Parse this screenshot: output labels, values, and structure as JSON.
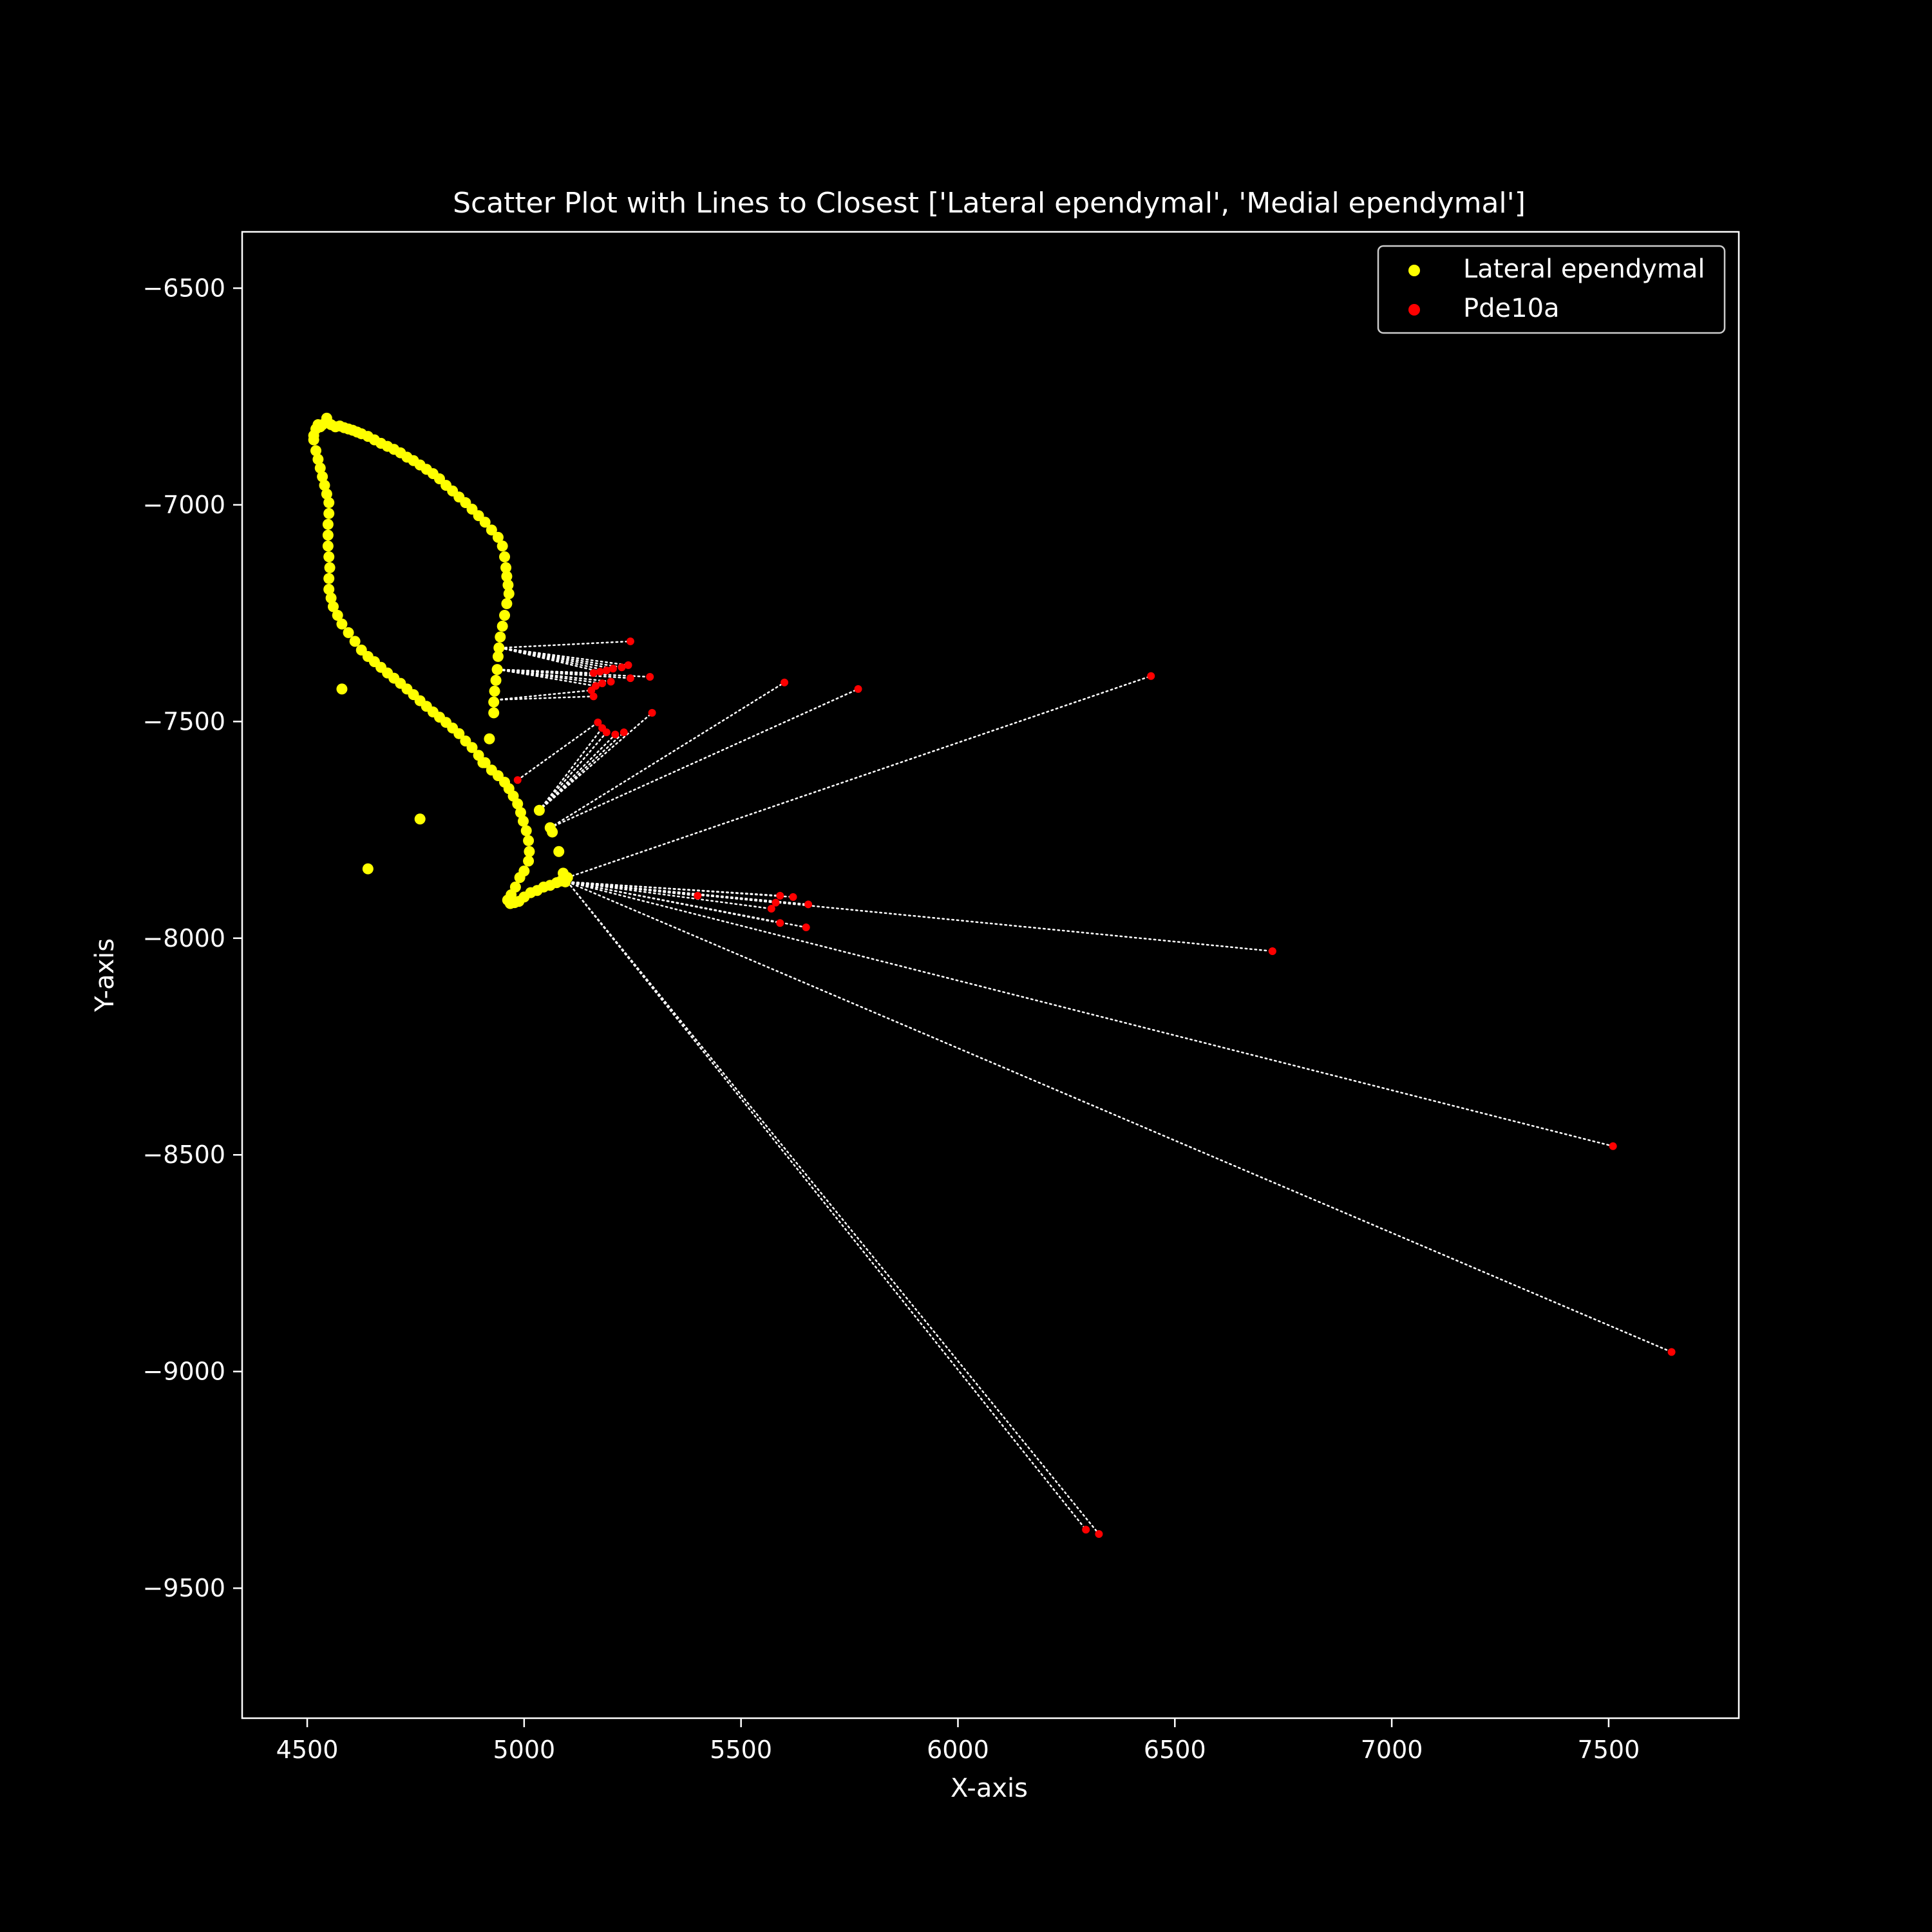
{
  "chart_data": {
    "type": "scatter",
    "title": "Scatter Plot with Lines to Closest ['Lateral ependymal', 'Medial ependymal']",
    "xlabel": "X-axis",
    "ylabel": "Y-axis",
    "xlim": [
      4350,
      7800
    ],
    "ylim": [
      -9800,
      -6370
    ],
    "xticks": [
      4500,
      5000,
      5500,
      6000,
      6500,
      7000,
      7500
    ],
    "yticks": [
      -6500,
      -7000,
      -7500,
      -8000,
      -8500,
      -9000,
      -9500
    ],
    "xtick_labels": [
      "4500",
      "5000",
      "5500",
      "6000",
      "6500",
      "7000",
      "7500"
    ],
    "ytick_labels": [
      "−6500",
      "−7000",
      "−7500",
      "−8000",
      "−8500",
      "−9000",
      "−9500"
    ],
    "grid": false,
    "legend_position": "top-right",
    "colors": {
      "background": "#000000",
      "axes": "#ffffff",
      "lateral": "#ffff00",
      "pde10a": "#ff0000",
      "lines": "#ffffff"
    },
    "series": [
      {
        "name": "Lateral ependymal",
        "color": "#ffff00",
        "points": [
          [
            4515,
            -6840
          ],
          [
            4520,
            -6825
          ],
          [
            4525,
            -6815
          ],
          [
            4530,
            -6820
          ],
          [
            4535,
            -6815
          ],
          [
            4545,
            -6800
          ],
          [
            4555,
            -6815
          ],
          [
            4565,
            -6820
          ],
          [
            4575,
            -6818
          ],
          [
            4585,
            -6822
          ],
          [
            4595,
            -6825
          ],
          [
            4605,
            -6828
          ],
          [
            4615,
            -6832
          ],
          [
            4625,
            -6836
          ],
          [
            4640,
            -6842
          ],
          [
            4655,
            -6850
          ],
          [
            4670,
            -6858
          ],
          [
            4685,
            -6865
          ],
          [
            4700,
            -6872
          ],
          [
            4715,
            -6880
          ],
          [
            4730,
            -6890
          ],
          [
            4745,
            -6898
          ],
          [
            4760,
            -6908
          ],
          [
            4775,
            -6918
          ],
          [
            4790,
            -6928
          ],
          [
            4805,
            -6940
          ],
          [
            4820,
            -6955
          ],
          [
            4835,
            -6968
          ],
          [
            4850,
            -6982
          ],
          [
            4865,
            -6995
          ],
          [
            4880,
            -7010
          ],
          [
            4895,
            -7025
          ],
          [
            4910,
            -7040
          ],
          [
            4925,
            -7058
          ],
          [
            4940,
            -7075
          ],
          [
            4950,
            -7095
          ],
          [
            4955,
            -7120
          ],
          [
            4958,
            -7145
          ],
          [
            4960,
            -7165
          ],
          [
            4963,
            -7185
          ],
          [
            4965,
            -7205
          ],
          [
            4960,
            -7228
          ],
          [
            4955,
            -7255
          ],
          [
            4950,
            -7280
          ],
          [
            4945,
            -7305
          ],
          [
            4942,
            -7330
          ],
          [
            4940,
            -7350
          ],
          [
            4938,
            -7380
          ],
          [
            4935,
            -7405
          ],
          [
            4932,
            -7430
          ],
          [
            4930,
            -7455
          ],
          [
            4930,
            -7480
          ],
          [
            4515,
            -6850
          ],
          [
            4520,
            -6875
          ],
          [
            4525,
            -6895
          ],
          [
            4530,
            -6915
          ],
          [
            4535,
            -6935
          ],
          [
            4540,
            -6955
          ],
          [
            4545,
            -6975
          ],
          [
            4550,
            -6995
          ],
          [
            4550,
            -7020
          ],
          [
            4548,
            -7045
          ],
          [
            4548,
            -7070
          ],
          [
            4548,
            -7095
          ],
          [
            4550,
            -7120
          ],
          [
            4552,
            -7145
          ],
          [
            4550,
            -7170
          ],
          [
            4550,
            -7195
          ],
          [
            4555,
            -7215
          ],
          [
            4560,
            -7235
          ],
          [
            4570,
            -7255
          ],
          [
            4580,
            -7275
          ],
          [
            4595,
            -7295
          ],
          [
            4610,
            -7315
          ],
          [
            4625,
            -7335
          ],
          [
            4640,
            -7350
          ],
          [
            4655,
            -7362
          ],
          [
            4670,
            -7375
          ],
          [
            4685,
            -7388
          ],
          [
            4700,
            -7400
          ],
          [
            4715,
            -7412
          ],
          [
            4730,
            -7425
          ],
          [
            4745,
            -7438
          ],
          [
            4760,
            -7452
          ],
          [
            4775,
            -7465
          ],
          [
            4790,
            -7478
          ],
          [
            4805,
            -7490
          ],
          [
            4820,
            -7502
          ],
          [
            4835,
            -7515
          ],
          [
            4850,
            -7528
          ],
          [
            4865,
            -7545
          ],
          [
            4880,
            -7560
          ],
          [
            4895,
            -7578
          ],
          [
            4910,
            -7595
          ],
          [
            4925,
            -7612
          ],
          [
            4940,
            -7625
          ],
          [
            4955,
            -7640
          ],
          [
            4965,
            -7655
          ],
          [
            4975,
            -7672
          ],
          [
            4985,
            -7690
          ],
          [
            4992,
            -7710
          ],
          [
            4998,
            -7730
          ],
          [
            5005,
            -7752
          ],
          [
            5010,
            -7775
          ],
          [
            5012,
            -7800
          ],
          [
            5010,
            -7822
          ],
          [
            5000,
            -7845
          ],
          [
            4990,
            -7860
          ],
          [
            4980,
            -7882
          ],
          [
            4970,
            -7900
          ],
          [
            4962,
            -7912
          ],
          [
            4968,
            -7920
          ],
          [
            4978,
            -7918
          ],
          [
            4988,
            -7915
          ],
          [
            5000,
            -7905
          ],
          [
            5015,
            -7895
          ],
          [
            5030,
            -7890
          ],
          [
            5045,
            -7882
          ],
          [
            5060,
            -7878
          ],
          [
            5075,
            -7872
          ],
          [
            5085,
            -7868
          ],
          [
            5095,
            -7870
          ],
          [
            5100,
            -7860
          ],
          [
            5090,
            -7850
          ],
          [
            5080,
            -7800
          ],
          [
            5065,
            -7755
          ],
          [
            5060,
            -7745
          ],
          [
            5035,
            -7705
          ],
          [
            4920,
            -7540
          ],
          [
            4905,
            -7595
          ],
          [
            4580,
            -7425
          ],
          [
            4760,
            -7725
          ],
          [
            4640,
            -7840
          ]
        ]
      },
      {
        "name": "Pde10a",
        "color": "#ff0000",
        "points": [
          [
            5245,
            -7315
          ],
          [
            5240,
            -7370
          ],
          [
            5225,
            -7375
          ],
          [
            5205,
            -7378
          ],
          [
            5190,
            -7382
          ],
          [
            5175,
            -7385
          ],
          [
            5160,
            -7388
          ],
          [
            5245,
            -7400
          ],
          [
            5290,
            -7397
          ],
          [
            5200,
            -7408
          ],
          [
            5180,
            -7412
          ],
          [
            5165,
            -7418
          ],
          [
            5155,
            -7428
          ],
          [
            5160,
            -7442
          ],
          [
            5600,
            -7410
          ],
          [
            5770,
            -7425
          ],
          [
            6445,
            -7395
          ],
          [
            5295,
            -7480
          ],
          [
            5170,
            -7502
          ],
          [
            5180,
            -7515
          ],
          [
            5190,
            -7525
          ],
          [
            5210,
            -7530
          ],
          [
            5230,
            -7525
          ],
          [
            4985,
            -7635
          ],
          [
            5400,
            -7902
          ],
          [
            5590,
            -7902
          ],
          [
            5620,
            -7905
          ],
          [
            5580,
            -7918
          ],
          [
            5655,
            -7922
          ],
          [
            5570,
            -7932
          ],
          [
            5590,
            -7965
          ],
          [
            5650,
            -7975
          ],
          [
            6725,
            -8030
          ],
          [
            7510,
            -8480
          ],
          [
            7645,
            -8955
          ],
          [
            6295,
            -9365
          ],
          [
            6325,
            -9375
          ]
        ]
      }
    ],
    "connections": [
      [
        [
          4945,
          -7330
        ],
        [
          5245,
          -7315
        ]
      ],
      [
        [
          4945,
          -7330
        ],
        [
          5240,
          -7370
        ]
      ],
      [
        [
          4945,
          -7330
        ],
        [
          5225,
          -7375
        ]
      ],
      [
        [
          4945,
          -7330
        ],
        [
          5205,
          -7378
        ]
      ],
      [
        [
          4945,
          -7330
        ],
        [
          5190,
          -7382
        ]
      ],
      [
        [
          4945,
          -7330
        ],
        [
          5175,
          -7385
        ]
      ],
      [
        [
          4940,
          -7380
        ],
        [
          5245,
          -7400
        ]
      ],
      [
        [
          4940,
          -7380
        ],
        [
          5290,
          -7397
        ]
      ],
      [
        [
          4940,
          -7380
        ],
        [
          5200,
          -7408
        ]
      ],
      [
        [
          4940,
          -7380
        ],
        [
          5180,
          -7412
        ]
      ],
      [
        [
          4940,
          -7380
        ],
        [
          5165,
          -7418
        ]
      ],
      [
        [
          4940,
          -7380
        ],
        [
          5160,
          -7388
        ]
      ],
      [
        [
          4935,
          -7450
        ],
        [
          5155,
          -7428
        ]
      ],
      [
        [
          4935,
          -7450
        ],
        [
          5160,
          -7442
        ]
      ],
      [
        [
          4985,
          -7635
        ],
        [
          5170,
          -7502
        ]
      ],
      [
        [
          5035,
          -7705
        ],
        [
          5180,
          -7515
        ]
      ],
      [
        [
          5035,
          -7705
        ],
        [
          5190,
          -7525
        ]
      ],
      [
        [
          5035,
          -7705
        ],
        [
          5210,
          -7530
        ]
      ],
      [
        [
          5035,
          -7705
        ],
        [
          5230,
          -7525
        ]
      ],
      [
        [
          5035,
          -7705
        ],
        [
          5295,
          -7480
        ]
      ],
      [
        [
          5060,
          -7745
        ],
        [
          5600,
          -7410
        ]
      ],
      [
        [
          5060,
          -7745
        ],
        [
          5770,
          -7425
        ]
      ],
      [
        [
          5100,
          -7860
        ],
        [
          6445,
          -7395
        ]
      ],
      [
        [
          5100,
          -7870
        ],
        [
          5400,
          -7902
        ]
      ],
      [
        [
          5100,
          -7870
        ],
        [
          5590,
          -7902
        ]
      ],
      [
        [
          5100,
          -7870
        ],
        [
          5620,
          -7905
        ]
      ],
      [
        [
          5100,
          -7870
        ],
        [
          5580,
          -7918
        ]
      ],
      [
        [
          5100,
          -7870
        ],
        [
          5655,
          -7922
        ]
      ],
      [
        [
          5100,
          -7870
        ],
        [
          5570,
          -7932
        ]
      ],
      [
        [
          5100,
          -7870
        ],
        [
          5590,
          -7965
        ]
      ],
      [
        [
          5100,
          -7870
        ],
        [
          5650,
          -7975
        ]
      ],
      [
        [
          5100,
          -7870
        ],
        [
          6725,
          -8030
        ]
      ],
      [
        [
          5100,
          -7870
        ],
        [
          7510,
          -8480
        ]
      ],
      [
        [
          5100,
          -7870
        ],
        [
          7645,
          -8955
        ]
      ],
      [
        [
          5100,
          -7870
        ],
        [
          6295,
          -9365
        ]
      ],
      [
        [
          5100,
          -7870
        ],
        [
          6325,
          -9375
        ]
      ]
    ]
  }
}
